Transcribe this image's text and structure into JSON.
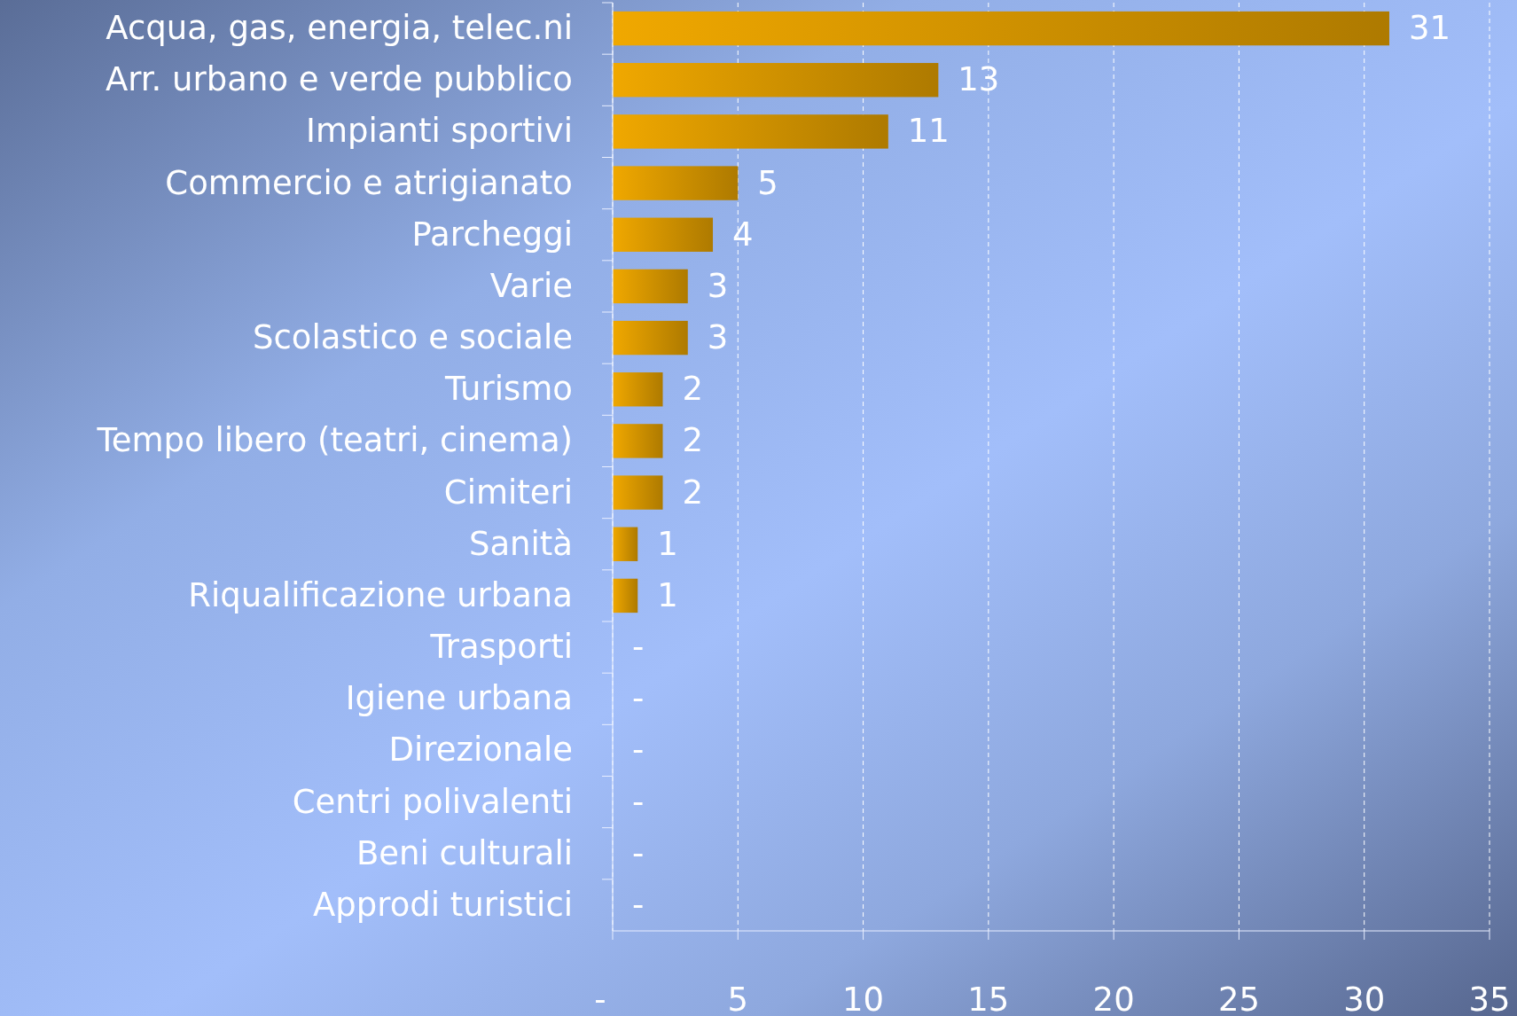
{
  "chart_data": {
    "type": "bar",
    "orientation": "horizontal",
    "categories": [
      "Acqua, gas, energia, telec.ni",
      "Arr. urbano e verde pubblico",
      "Impianti sportivi",
      "Commercio e atrigianato",
      "Parcheggi",
      "Varie",
      "Scolastico e sociale",
      "Turismo",
      "Tempo libero (teatri, cinema)",
      "Cimiteri",
      "Sanità",
      "Riqualificazione urbana",
      "Trasporti",
      "Igiene urbana",
      "Direzionale",
      "Centri polivalenti",
      "Beni culturali",
      "Approdi turistici"
    ],
    "values": [
      31,
      13,
      11,
      5,
      4,
      3,
      3,
      2,
      2,
      2,
      1,
      1,
      0,
      0,
      0,
      0,
      0,
      0
    ],
    "value_labels": [
      "31",
      "13",
      "11",
      "5",
      "4",
      "3",
      "3",
      "2",
      "2",
      "2",
      "1",
      "1",
      "-",
      "-",
      "-",
      "-",
      "-",
      "-"
    ],
    "color": "#f0a800",
    "xlim": [
      0,
      35
    ],
    "xticks": [
      {
        "value": 0,
        "label": "-"
      },
      5,
      10,
      15,
      20,
      25,
      30,
      35
    ],
    "grid": "x"
  }
}
